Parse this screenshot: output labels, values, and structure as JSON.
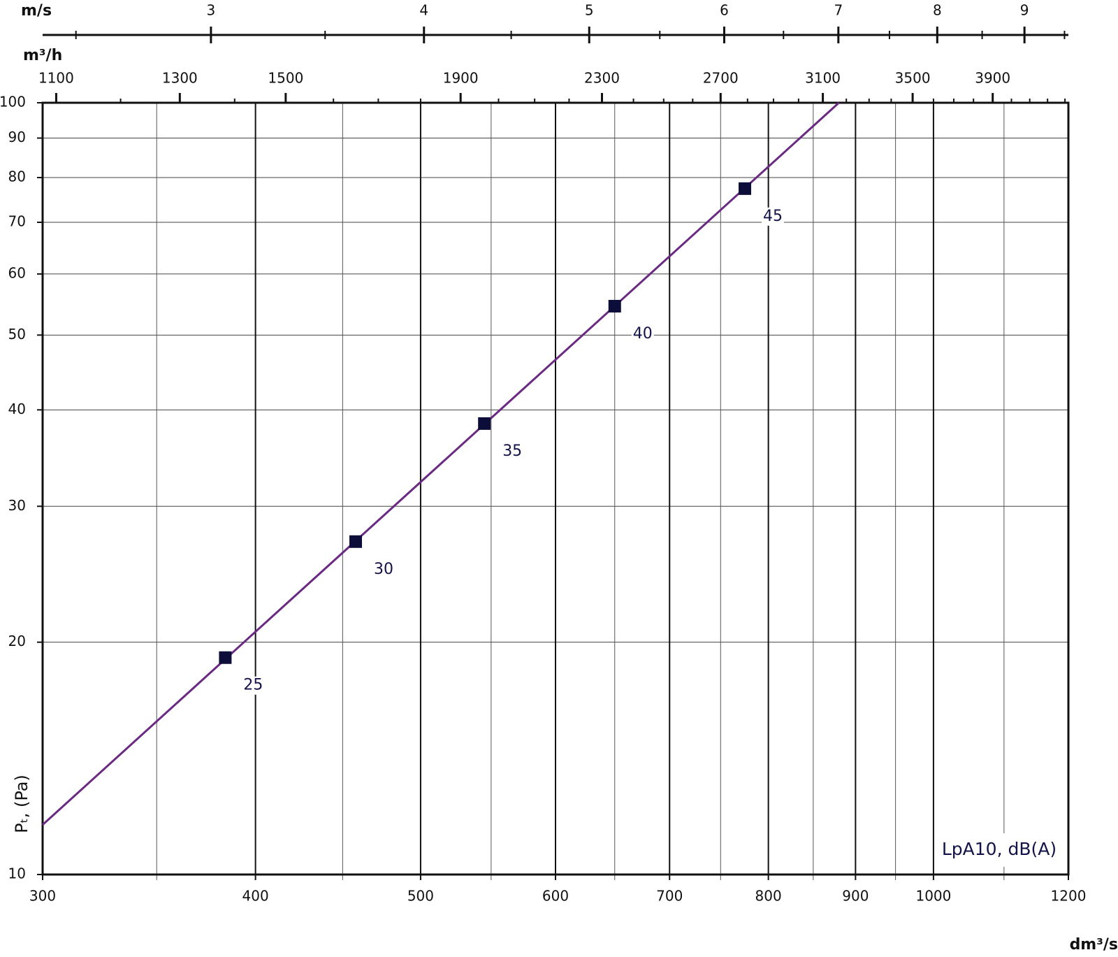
{
  "chart_data": {
    "type": "line",
    "log_x": true,
    "log_y": true,
    "grid": true,
    "xlim": [
      300,
      1200
    ],
    "xticks": [
      300,
      400,
      500,
      600,
      700,
      800,
      900,
      1000,
      1200
    ],
    "minor_xticks": [
      350,
      450,
      550,
      650,
      750,
      850,
      950,
      1100
    ],
    "ylim": [
      10,
      100
    ],
    "yticks": [
      10,
      20,
      30,
      40,
      50,
      60,
      70,
      80,
      90,
      100
    ],
    "x_label": "dm³/s",
    "y_label": "Pₜ, (Pa)",
    "legend_text": "LpA10, dB(A)",
    "top_axes": [
      {
        "label": "m/s",
        "xlim": [
          2.39,
          9.55
        ],
        "xticks": [
          3,
          4,
          5,
          6,
          7,
          8,
          9
        ],
        "minor_xticks": [
          2.5,
          3.5,
          4.5,
          5.5,
          6.5,
          7.5,
          8.5,
          9.5
        ]
      },
      {
        "label": "m³/h",
        "xlim": [
          1080,
          4320
        ],
        "xticks": [
          1100,
          1300,
          1500,
          1900,
          2300,
          2700,
          3100,
          3500,
          3900
        ],
        "minor_xticks": [
          1200,
          1400,
          1600,
          1700,
          1800,
          2000,
          2100,
          2200,
          2400,
          2500,
          2600,
          2800,
          2900,
          3000,
          3200,
          3300,
          3400,
          3600,
          3700,
          3800,
          4000,
          4100,
          4200,
          4300
        ]
      }
    ],
    "series": [
      {
        "color": "#6a2a82",
        "x": [
          300,
          880
        ],
        "values": [
          11.6,
          100
        ]
      },
      {
        "color": "#0d0d3a",
        "x": [
          384,
          458,
          545,
          650,
          775
        ],
        "values": [
          19.1,
          27.0,
          38.4,
          54.5,
          77.4
        ],
        "sound_levels": [
          25,
          30,
          35,
          40,
          45
        ]
      }
    ]
  }
}
